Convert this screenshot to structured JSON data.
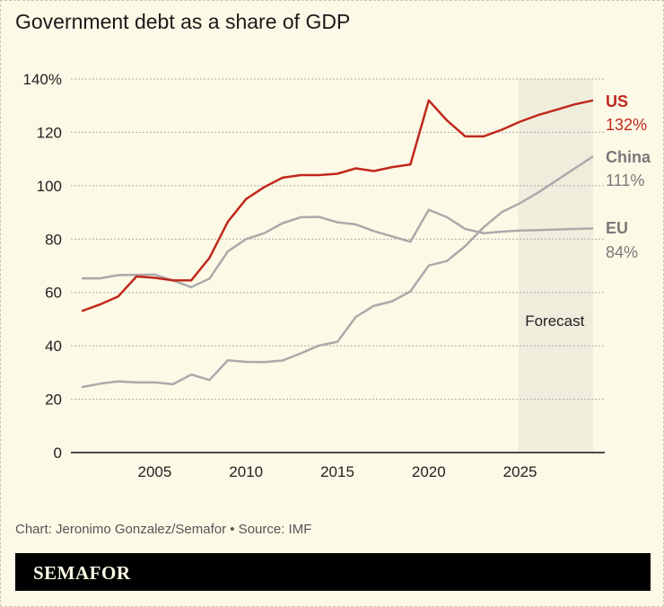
{
  "title": "Government debt as a share of GDP",
  "source": "Chart: Jeronimo Gonzalez/Semafor • Source: IMF",
  "logo": "SEMAFOR",
  "chart_data": {
    "type": "line",
    "title": "Government debt as a share of GDP",
    "x": [
      2001,
      2002,
      2003,
      2004,
      2005,
      2006,
      2007,
      2008,
      2009,
      2010,
      2011,
      2012,
      2013,
      2014,
      2015,
      2016,
      2017,
      2018,
      2019,
      2020,
      2021,
      2022,
      2023,
      2024,
      2025,
      2026,
      2027,
      2028,
      2029
    ],
    "xlim": [
      2001,
      2029
    ],
    "ylim": [
      0,
      140
    ],
    "yticks": [
      0,
      20,
      40,
      60,
      80,
      100,
      120,
      140
    ],
    "ytick_labels": [
      "0",
      "20",
      "40",
      "60",
      "80",
      "100",
      "120",
      "140%"
    ],
    "xticks": [
      2005,
      2010,
      2015,
      2020,
      2025
    ],
    "xtick_labels": [
      "2005",
      "2010",
      "2015",
      "2020",
      "2025"
    ],
    "grid": "horizontal dotted",
    "forecast": {
      "label": "Forecast",
      "from": 2025,
      "to": 2029,
      "color": "#efeedd"
    },
    "series": [
      {
        "name": "US",
        "end_label": "132%",
        "color": "#c0281c",
        "values": [
          53,
          55.5,
          58.5,
          66,
          65.5,
          64.5,
          64.5,
          73,
          86.5,
          95,
          99.5,
          103,
          104,
          104,
          104.5,
          106.5,
          105.5,
          107,
          108,
          132,
          124.5,
          118.5,
          118.5,
          121,
          124,
          126.5,
          128.5,
          130.5,
          132
        ]
      },
      {
        "name": "China",
        "end_label": "111%",
        "color": "#aaaaaa",
        "label_color": "#7a7a7a",
        "values": [
          24.5,
          25.8,
          26.7,
          26.3,
          26.3,
          25.6,
          29.2,
          27.2,
          34.6,
          34,
          33.9,
          34.5,
          37.2,
          40.1,
          41.5,
          50.8,
          55,
          56.7,
          60.4,
          70.1,
          71.8,
          77.4,
          84.4,
          90.1,
          93.5,
          97.5,
          102,
          106.5,
          111
        ]
      },
      {
        "name": "EU",
        "end_label": "84%",
        "color": "#aaaaaa",
        "label_color": "#7a7a7a",
        "values": [
          65.3,
          65.3,
          66.5,
          66.6,
          66.7,
          64.5,
          62,
          65.2,
          75.4,
          80,
          82.2,
          86,
          88.2,
          88.3,
          86.3,
          85.5,
          83,
          81,
          79,
          91,
          88.2,
          83.8,
          82.2,
          82.8,
          83.2,
          83.4,
          83.6,
          83.8,
          84
        ]
      }
    ]
  }
}
